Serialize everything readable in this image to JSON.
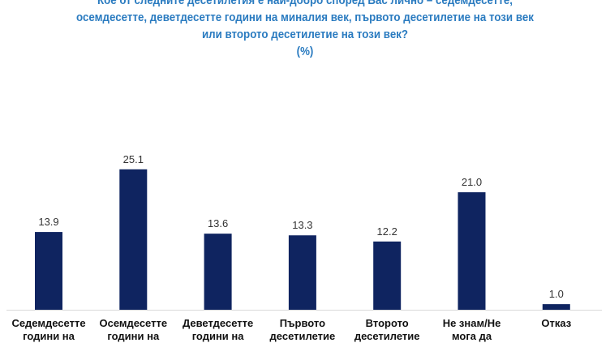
{
  "chart_data": {
    "type": "bar",
    "title_lines": [
      "Кое от следните десетилетия е най-добро според Вас лично – седемдесетте,",
      "осемдесетте, деветдесетте години на миналия век, първото десетилетие на този век",
      "или второто десетилетие на този век?",
      "(%)"
    ],
    "categories": [
      [
        "Седемдесетте",
        "години на"
      ],
      [
        "Осемдесетте",
        "години на"
      ],
      [
        "Деветдесетте",
        "години на"
      ],
      [
        "Първото",
        "десетилетие"
      ],
      [
        "Второто",
        "десетилетие"
      ],
      [
        "Не знам/Не",
        "мога да"
      ],
      [
        "Отказ",
        ""
      ]
    ],
    "values": [
      13.9,
      25.1,
      13.6,
      13.3,
      12.2,
      21.0,
      1.0
    ],
    "value_labels": [
      "13.9",
      "25.1",
      "13.6",
      "13.3",
      "12.2",
      "21.0",
      "1.0"
    ],
    "ylim": [
      0,
      30
    ],
    "grid": false,
    "colors": {
      "bar": "#0f2460",
      "title": "#2a7bc0",
      "axis": "#d9d9d9"
    }
  }
}
